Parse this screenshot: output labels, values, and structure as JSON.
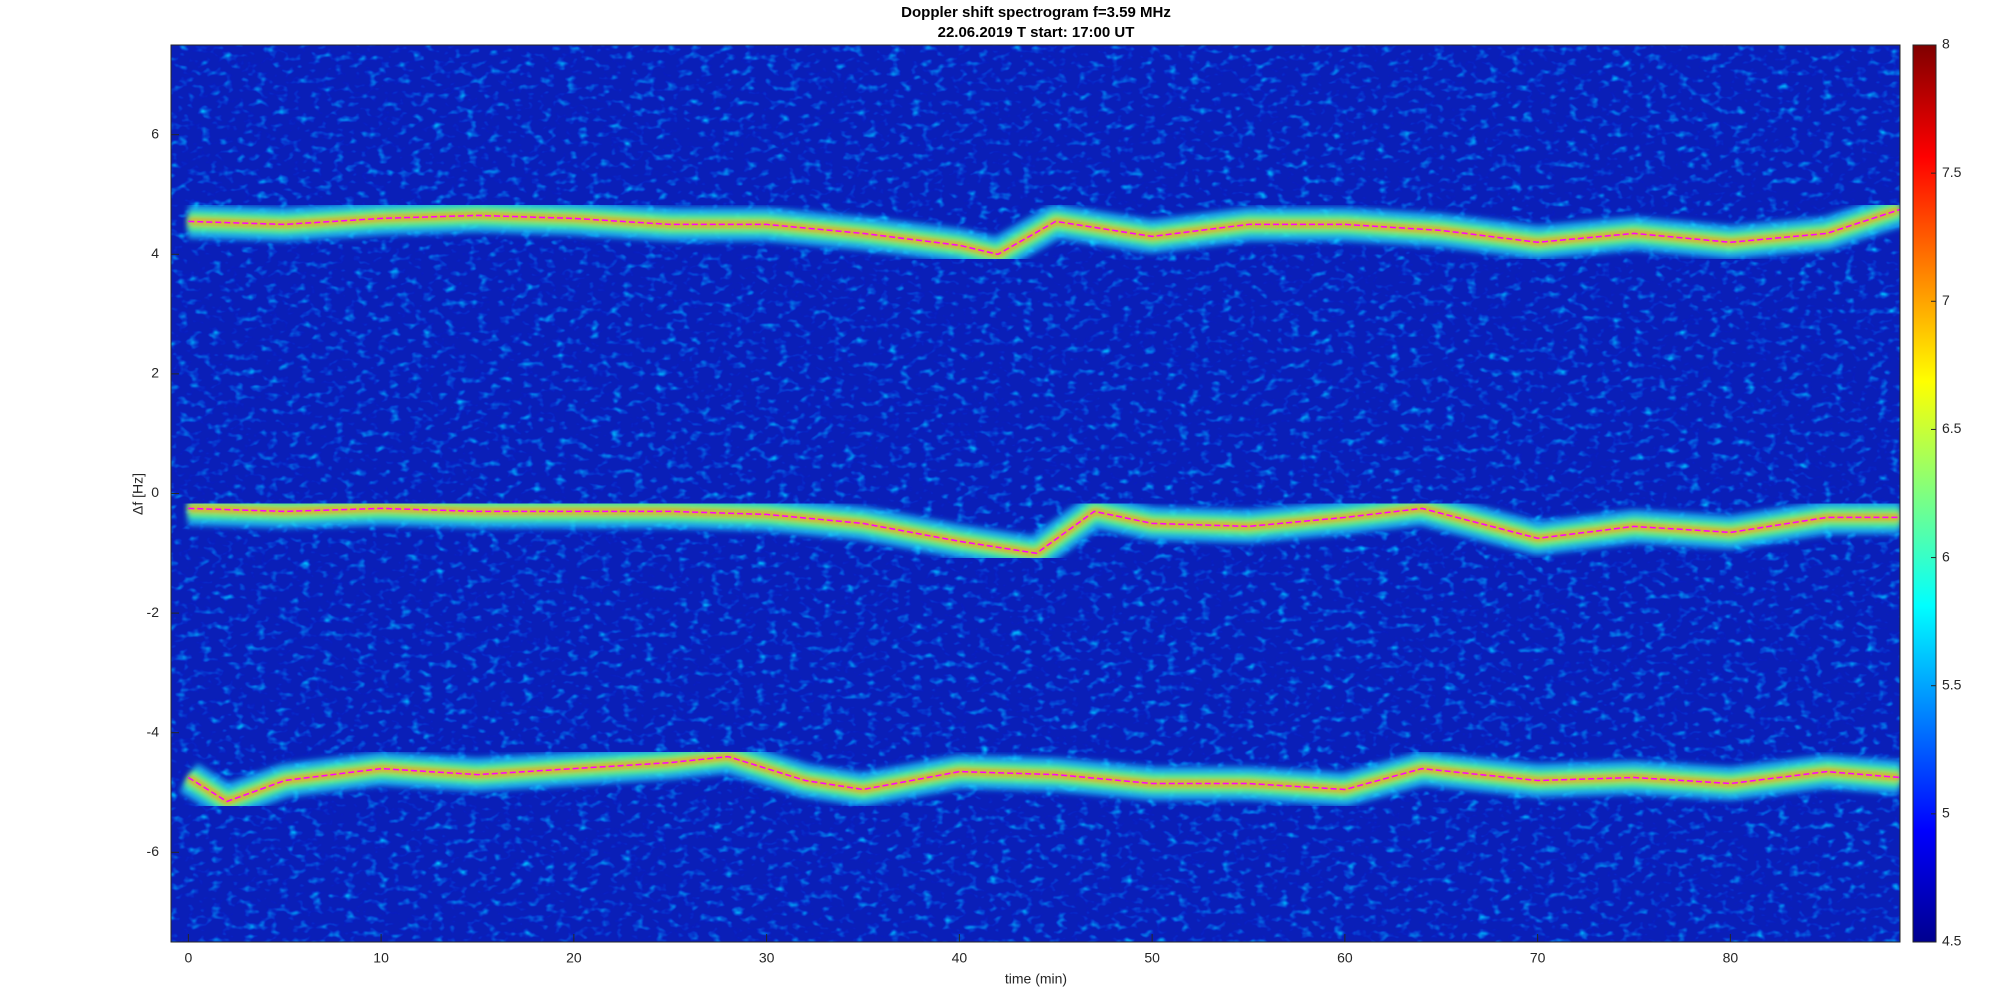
{
  "chart_data": {
    "type": "spectrogram",
    "title": "Doppler shift spectrogram f=3.59 MHz",
    "subtitle": "22.06.2019   T start: 17:00 UT",
    "xlabel": "time (min)",
    "ylabel": "Δf [Hz]",
    "xlim": [
      -0.9,
      88.8
    ],
    "ylim": [
      -7.5,
      7.5
    ],
    "xticks": [
      0,
      10,
      20,
      30,
      40,
      50,
      60,
      70,
      80
    ],
    "yticks": [
      -6,
      -4,
      -2,
      0,
      2,
      4,
      6
    ],
    "colormap": "jet",
    "clim": [
      4.5,
      8
    ],
    "cticks": [
      4.5,
      5,
      5.5,
      6,
      6.5,
      7,
      7.5,
      8
    ],
    "series": [
      {
        "color": "#ff00ff",
        "x": [
          0,
          5,
          10,
          15,
          20,
          25,
          30,
          35,
          40,
          42,
          45,
          50,
          55,
          60,
          65,
          70,
          75,
          80,
          85,
          88.8
        ],
        "values": [
          4.55,
          4.5,
          4.6,
          4.65,
          4.6,
          4.5,
          4.5,
          4.35,
          4.15,
          4.0,
          4.55,
          4.3,
          4.5,
          4.5,
          4.4,
          4.2,
          4.35,
          4.2,
          4.35,
          4.75
        ]
      },
      {
        "color": "#ff00ff",
        "x": [
          0,
          5,
          10,
          15,
          20,
          25,
          30,
          35,
          40,
          44,
          47,
          50,
          55,
          60,
          64,
          70,
          75,
          80,
          85,
          88.8
        ],
        "values": [
          -0.25,
          -0.3,
          -0.25,
          -0.3,
          -0.3,
          -0.3,
          -0.35,
          -0.5,
          -0.8,
          -1.0,
          -0.3,
          -0.5,
          -0.55,
          -0.4,
          -0.25,
          -0.75,
          -0.55,
          -0.65,
          -0.4,
          -0.4
        ]
      },
      {
        "color": "#ff00ff",
        "x": [
          0,
          2,
          5,
          10,
          15,
          20,
          25,
          28,
          32,
          35,
          40,
          45,
          50,
          55,
          60,
          64,
          70,
          75,
          80,
          85,
          88.8
        ],
        "values": [
          -4.75,
          -5.15,
          -4.8,
          -4.6,
          -4.7,
          -4.6,
          -4.5,
          -4.4,
          -4.8,
          -4.95,
          -4.65,
          -4.7,
          -4.85,
          -4.85,
          -4.95,
          -4.6,
          -4.8,
          -4.75,
          -4.85,
          -4.65,
          -4.75
        ]
      }
    ]
  }
}
